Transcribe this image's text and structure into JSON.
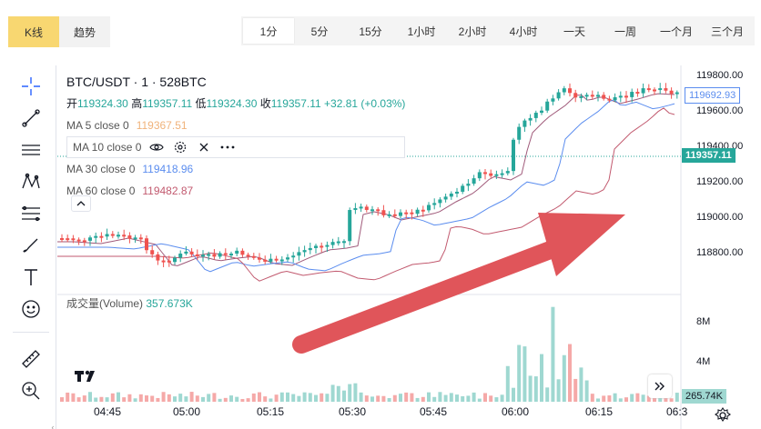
{
  "view_tabs": [
    {
      "label": "K线",
      "active": true
    },
    {
      "label": "趋势",
      "active": false
    }
  ],
  "timeframes": [
    {
      "label": "1分",
      "active": true
    },
    {
      "label": "5分"
    },
    {
      "label": "15分"
    },
    {
      "label": "1小时"
    },
    {
      "label": "2小时"
    },
    {
      "label": "4小时"
    },
    {
      "label": "一天"
    },
    {
      "label": "一周"
    },
    {
      "label": "一个月"
    },
    {
      "label": "三个月"
    }
  ],
  "legend": {
    "symbol": "BTC/USDT · 1 · 528BTC",
    "open_label": "开",
    "open": "119324.30",
    "high_label": "高",
    "high": "119357.11",
    "low_label": "低",
    "low": "119324.30",
    "close_label": "收",
    "close": "119357.11",
    "change": "+32.81 (+0.03%)",
    "ma5_label": "MA 5 close 0",
    "ma5_value": "119367.51",
    "ma10_label": "MA 10 close 0",
    "ma30_label": "MA 30 close 0",
    "ma30_value": "119418.96",
    "ma60_label": "MA 60 close 0",
    "ma60_value": "119482.87"
  },
  "volume": {
    "label": "成交量(Volume)",
    "value": "357.673K"
  },
  "price_axis": [
    "119800.00",
    "119600.00",
    "119400.00",
    "119200.00",
    "119000.00",
    "118800.00"
  ],
  "price_badges": {
    "ma_last": "119692.93",
    "last_price": "119357.11"
  },
  "volume_axis": [
    "8M",
    "4M"
  ],
  "volume_badge": "265.74K",
  "time_axis": [
    "04:45",
    "05:00",
    "05:15",
    "05:30",
    "05:45",
    "06:00",
    "06:15",
    "06:3"
  ],
  "colors": {
    "up": "#26a69a",
    "down": "#ef5350",
    "ma5": "#f0b27a",
    "ma10": "#a05a7a",
    "ma30": "#5b8def",
    "ma60": "#c25a6f",
    "arrow": "#e0555a",
    "accent": "#f8d771"
  },
  "icons": [
    "crosshair-icon",
    "trend-line-icon",
    "horizontal-lines-icon",
    "pattern-icon",
    "fib-icon",
    "brush-icon",
    "text-icon",
    "emoji-icon",
    "ruler-icon",
    "zoom-in-icon"
  ]
}
